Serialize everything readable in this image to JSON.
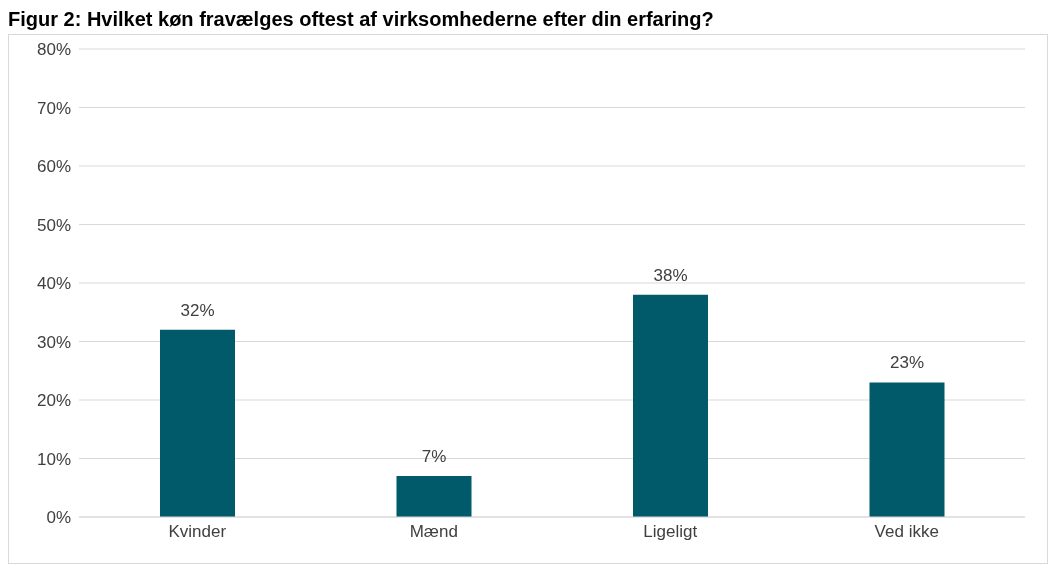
{
  "chart_data": {
    "type": "bar",
    "title": "Figur 2: Hvilket køn fravælges oftest af virksomhederne efter din erfaring?",
    "categories": [
      "Kvinder",
      "Mænd",
      "Ligeligt",
      "Ved ikke"
    ],
    "values": [
      32,
      7,
      38,
      23
    ],
    "value_labels": [
      "32%",
      "7%",
      "38%",
      "23%"
    ],
    "color": "#005a6a",
    "ylim": [
      0,
      80
    ],
    "yticks": [
      {
        "value": 0,
        "label": "0%"
      },
      {
        "value": 10,
        "label": "10%"
      },
      {
        "value": 20,
        "label": "20%"
      },
      {
        "value": 30,
        "label": "30%"
      },
      {
        "value": 40,
        "label": "40%"
      },
      {
        "value": 50,
        "label": "50%"
      },
      {
        "value": 60,
        "label": "60%"
      },
      {
        "value": 70,
        "label": "70%"
      },
      {
        "value": 80,
        "label": "80%"
      }
    ],
    "grid": "y"
  }
}
